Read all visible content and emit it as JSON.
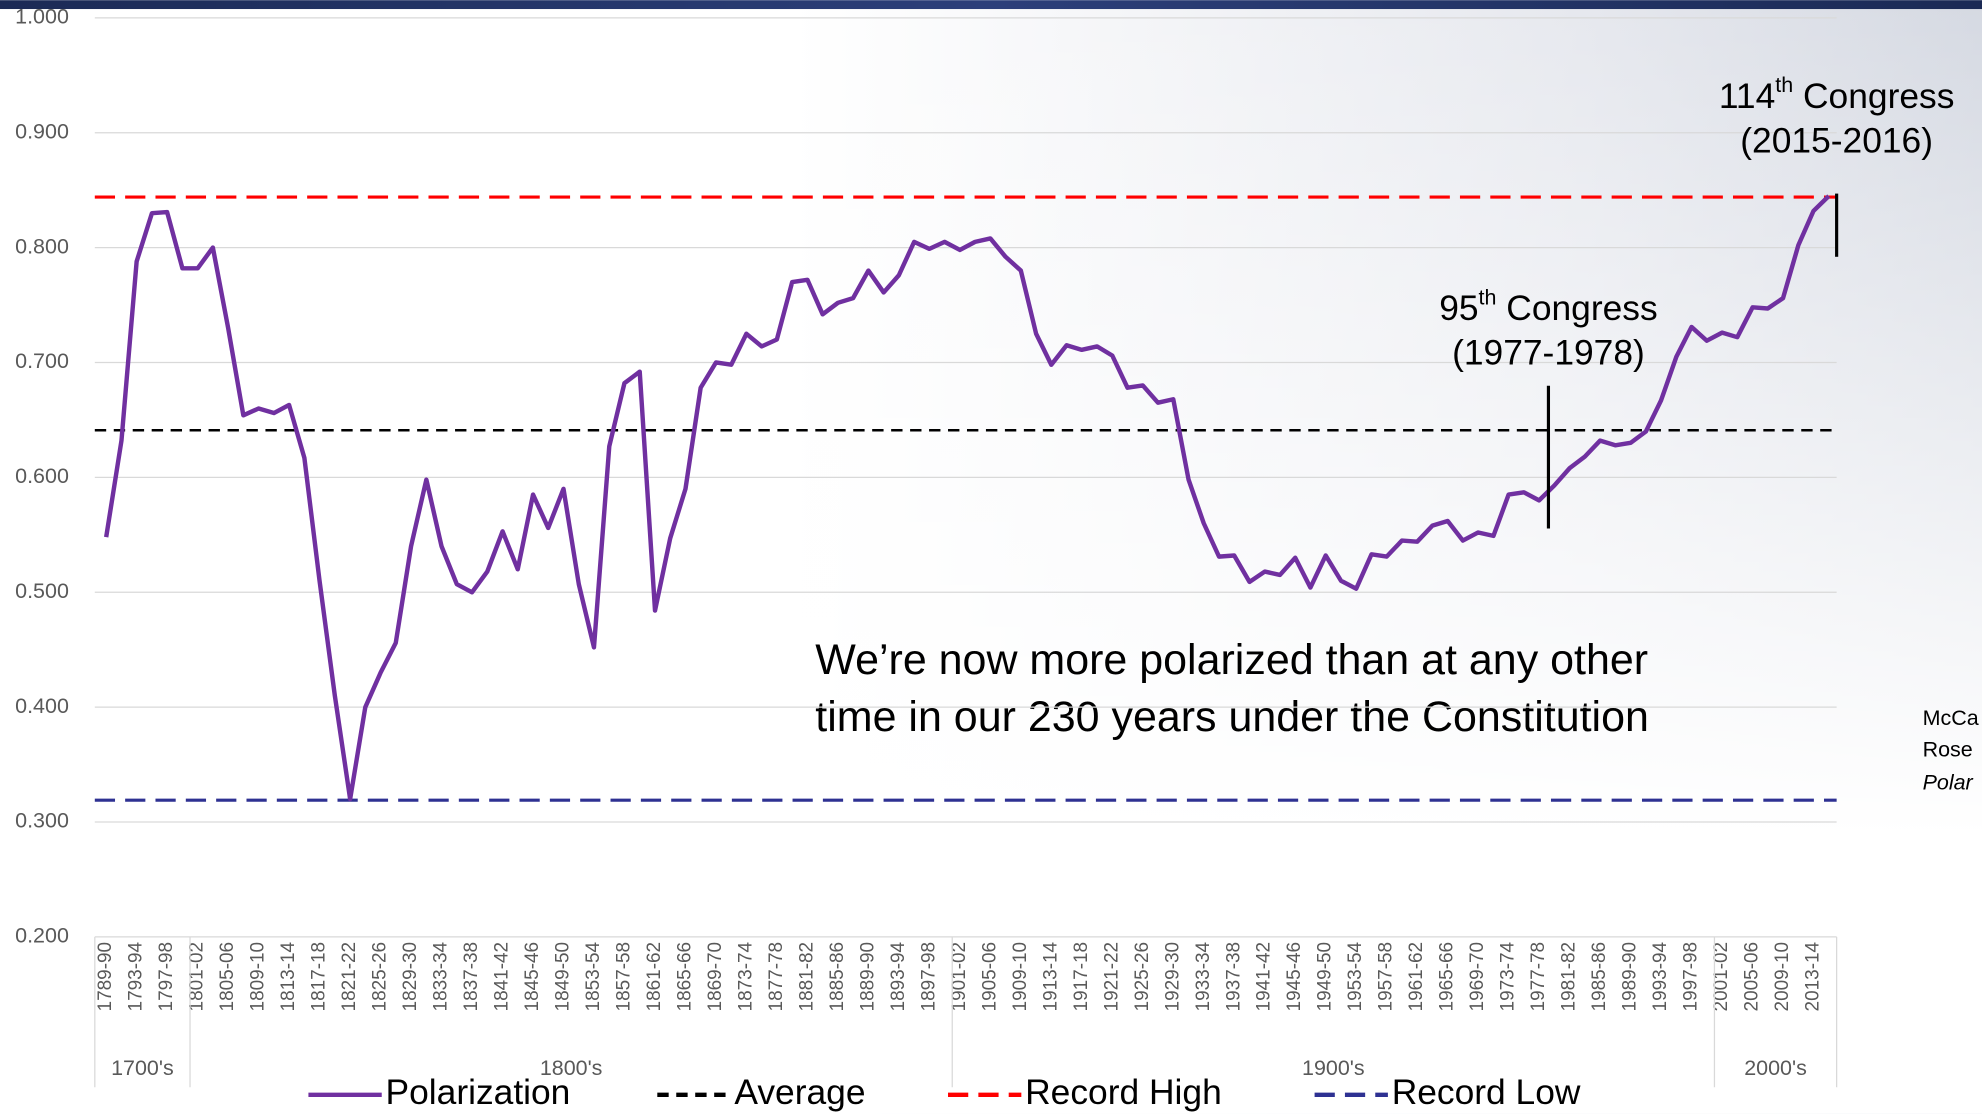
{
  "chart_data": {
    "type": "line",
    "categories": [
      "1789-90",
      null,
      "1793-94",
      null,
      "1797-98",
      null,
      "1801-02",
      null,
      "1805-06",
      null,
      "1809-10",
      null,
      "1813-14",
      null,
      "1817-18",
      null,
      "1821-22",
      null,
      "1825-26",
      null,
      "1829-30",
      null,
      "1833-34",
      null,
      "1837-38",
      null,
      "1841-42",
      null,
      "1845-46",
      null,
      "1849-50",
      null,
      "1853-54",
      null,
      "1857-58",
      null,
      "1861-62",
      null,
      "1865-66",
      null,
      "1869-70",
      null,
      "1873-74",
      null,
      "1877-78",
      null,
      "1881-82",
      null,
      "1885-86",
      null,
      "1889-90",
      null,
      "1893-94",
      null,
      "1897-98",
      null,
      "1901-02",
      null,
      "1905-06",
      null,
      "1909-10",
      null,
      "1913-14",
      null,
      "1917-18",
      null,
      "1921-22",
      null,
      "1925-26",
      null,
      "1929-30",
      null,
      "1933-34",
      null,
      "1937-38",
      null,
      "1941-42",
      null,
      "1945-46",
      null,
      "1949-50",
      null,
      "1953-54",
      null,
      "1957-58",
      null,
      "1961-62",
      null,
      "1965-66",
      null,
      "1969-70",
      null,
      "1973-74",
      null,
      "1977-78",
      null,
      "1981-82",
      null,
      "1985-86",
      null,
      "1989-90",
      null,
      "1993-94",
      null,
      "1997-98",
      null,
      "2001-02",
      null,
      "2005-06",
      null,
      "2009-10",
      null,
      "2013-14",
      null
    ],
    "series": [
      {
        "name": "Polarization",
        "color": "#7030a0",
        "values": [
          0.548,
          0.632,
          0.788,
          0.83,
          0.831,
          0.782,
          0.782,
          0.8,
          0.73,
          0.654,
          0.66,
          0.656,
          0.663,
          0.617,
          0.51,
          0.41,
          0.32,
          0.4,
          0.43,
          0.456,
          0.54,
          0.598,
          0.54,
          0.507,
          0.5,
          0.518,
          0.553,
          0.52,
          0.585,
          0.556,
          0.59,
          0.507,
          0.452,
          0.627,
          0.682,
          0.692,
          0.484,
          0.547,
          0.59,
          0.678,
          0.7,
          0.698,
          0.725,
          0.714,
          0.72,
          0.77,
          0.772,
          0.742,
          0.752,
          0.756,
          0.78,
          0.761,
          0.776,
          0.805,
          0.799,
          0.805,
          0.798,
          0.805,
          0.808,
          0.792,
          0.78,
          0.725,
          0.698,
          0.715,
          0.711,
          0.714,
          0.706,
          0.678,
          0.68,
          0.665,
          0.668,
          0.598,
          0.56,
          0.531,
          0.532,
          0.509,
          0.518,
          0.515,
          0.53,
          0.504,
          0.532,
          0.51,
          0.503,
          0.533,
          0.531,
          0.545,
          0.544,
          0.558,
          0.562,
          0.545,
          0.552,
          0.549,
          0.585,
          0.587,
          0.58,
          0.593,
          0.608,
          0.618,
          0.632,
          0.628,
          0.63,
          0.64,
          0.667,
          0.705,
          0.731,
          0.719,
          0.726,
          0.722,
          0.748,
          0.747,
          0.756,
          0.802,
          0.832,
          0.845
        ]
      }
    ],
    "reference_lines": [
      {
        "name": "Average",
        "color": "#000000",
        "value": 0.641
      },
      {
        "name": "Record High",
        "color": "#ff0000",
        "value": 0.844
      },
      {
        "name": "Record Low",
        "color": "#2e3192",
        "value": 0.319
      }
    ],
    "ylim": [
      0.2,
      1.0
    ],
    "yticks": [
      {
        "value": 0.2,
        "label": "0.200"
      },
      {
        "value": 0.3,
        "label": "0.300"
      },
      {
        "value": 0.4,
        "label": "0.400"
      },
      {
        "value": 0.5,
        "label": "0.500"
      },
      {
        "value": 0.6,
        "label": "0.600"
      },
      {
        "value": 0.7,
        "label": "0.700"
      },
      {
        "value": 0.8,
        "label": "0.800"
      },
      {
        "value": 0.9,
        "label": "0.900"
      },
      {
        "value": 1.0,
        "label": "1.000"
      }
    ],
    "grid": true,
    "legend": "bottom",
    "era_labels": [
      "1700's",
      "1800's",
      "1900's",
      "2000's"
    ],
    "annotations": [
      {
        "number": "114",
        "suffix": "th",
        "text": " Congress",
        "line2": "(2015-2016)"
      },
      {
        "number": "95",
        "suffix": "th",
        "text": " Congress",
        "line2": "(1977-1978)"
      }
    ],
    "message": [
      "We’re now more polarized than at any other",
      "time in our 230 years under the Constitution"
    ],
    "source_fragments": [
      "McCa",
      "Rose",
      "Polar"
    ]
  }
}
